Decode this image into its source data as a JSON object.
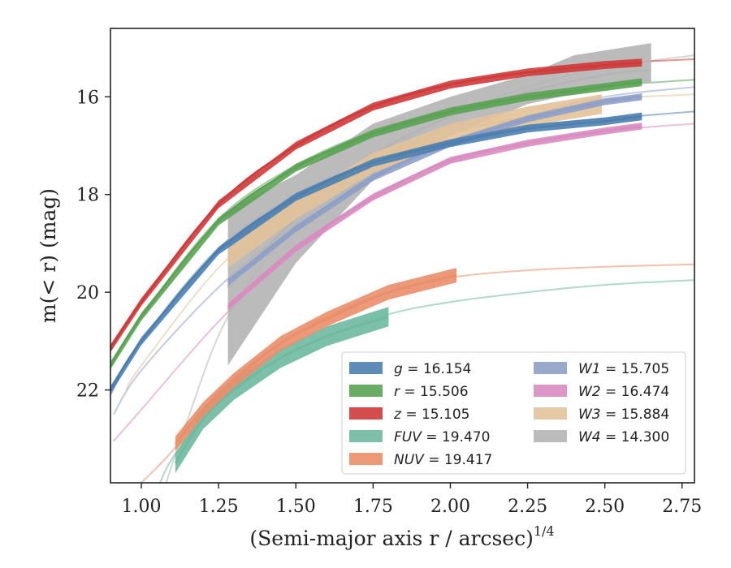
{
  "chart_data": {
    "type": "line",
    "xlabel": "(Semi-major axis r / arcsec)",
    "xlabel_sup": "1/4",
    "ylabel": "m(< r) (mag)",
    "xlim": [
      0.9,
      2.79
    ],
    "ylim": [
      23.9,
      14.6
    ],
    "y_inverted": true,
    "xticks": [
      1.0,
      1.25,
      1.5,
      1.75,
      2.0,
      2.25,
      2.5,
      2.75
    ],
    "xtick_labels": [
      "1.00",
      "1.25",
      "1.50",
      "1.75",
      "2.00",
      "2.25",
      "2.50",
      "2.75"
    ],
    "yticks": [
      16,
      18,
      20,
      22
    ],
    "ytick_labels": [
      "16",
      "18",
      "20",
      "22"
    ],
    "grid": false,
    "legend_position": "lower-right",
    "series": [
      {
        "name": "g = 16.154",
        "legend_var": "g",
        "legend_val": "16.154",
        "color": "#4c7fb0",
        "model": [
          [
            0.9,
            22.1
          ],
          [
            1.0,
            21.0
          ],
          [
            1.25,
            19.1
          ],
          [
            1.5,
            18.0
          ],
          [
            1.75,
            17.3
          ],
          [
            2.0,
            16.9
          ],
          [
            2.25,
            16.6
          ],
          [
            2.5,
            16.45
          ],
          [
            2.79,
            16.3
          ]
        ],
        "data": [
          [
            0.9,
            22.0
          ],
          [
            1.0,
            21.0
          ],
          [
            1.25,
            19.15
          ],
          [
            1.5,
            18.05
          ],
          [
            1.75,
            17.35
          ],
          [
            2.0,
            16.95
          ],
          [
            2.25,
            16.65
          ],
          [
            2.5,
            16.5
          ],
          [
            2.62,
            16.4
          ]
        ],
        "band": 0.08
      },
      {
        "name": "r = 15.506",
        "legend_var": "r",
        "legend_val": "15.506",
        "color": "#5aa353",
        "model": [
          [
            0.9,
            21.5
          ],
          [
            1.0,
            20.5
          ],
          [
            1.25,
            18.5
          ],
          [
            1.5,
            17.4
          ],
          [
            1.75,
            16.7
          ],
          [
            2.0,
            16.25
          ],
          [
            2.25,
            15.95
          ],
          [
            2.5,
            15.78
          ],
          [
            2.79,
            15.65
          ]
        ],
        "data": [
          [
            0.9,
            21.5
          ],
          [
            1.0,
            20.5
          ],
          [
            1.25,
            18.55
          ],
          [
            1.5,
            17.45
          ],
          [
            1.75,
            16.75
          ],
          [
            2.0,
            16.3
          ],
          [
            2.25,
            16.0
          ],
          [
            2.5,
            15.8
          ],
          [
            2.62,
            15.7
          ]
        ],
        "band": 0.08
      },
      {
        "name": "z = 15.105",
        "legend_var": "z",
        "legend_val": "15.105",
        "color": "#cf3a3a",
        "model": [
          [
            0.9,
            21.15
          ],
          [
            1.0,
            20.2
          ],
          [
            1.25,
            18.2
          ],
          [
            1.5,
            17.0
          ],
          [
            1.75,
            16.2
          ],
          [
            2.0,
            15.75
          ],
          [
            2.25,
            15.5
          ],
          [
            2.5,
            15.33
          ],
          [
            2.79,
            15.23
          ]
        ],
        "data": [
          [
            0.9,
            21.15
          ],
          [
            1.0,
            20.2
          ],
          [
            1.25,
            18.2
          ],
          [
            1.5,
            17.0
          ],
          [
            1.75,
            16.2
          ],
          [
            2.0,
            15.75
          ],
          [
            2.25,
            15.5
          ],
          [
            2.5,
            15.35
          ],
          [
            2.62,
            15.3
          ]
        ],
        "band": 0.08
      },
      {
        "name": "FUV = 19.470",
        "legend_var": "FUV",
        "legend_val": "19.470",
        "color": "#6fb9a0",
        "model": [
          [
            1.06,
            23.9
          ],
          [
            1.1,
            23.4
          ],
          [
            1.2,
            22.6
          ],
          [
            1.3,
            21.95
          ],
          [
            1.45,
            21.35
          ],
          [
            1.6,
            20.9
          ],
          [
            1.8,
            20.45
          ],
          [
            2.0,
            20.2
          ],
          [
            2.25,
            20.0
          ],
          [
            2.5,
            19.85
          ],
          [
            2.79,
            19.75
          ]
        ],
        "data": [
          [
            1.11,
            23.5
          ],
          [
            1.2,
            22.6
          ],
          [
            1.3,
            22.0
          ],
          [
            1.45,
            21.35
          ],
          [
            1.6,
            20.9
          ],
          [
            1.8,
            20.5
          ]
        ],
        "band": 0.2
      },
      {
        "name": "NUV = 19.417",
        "legend_var": "NUV",
        "legend_val": "19.417",
        "color": "#e98e6a",
        "model": [
          [
            1.0,
            23.9
          ],
          [
            1.1,
            23.25
          ],
          [
            1.2,
            22.4
          ],
          [
            1.3,
            21.75
          ],
          [
            1.45,
            21.05
          ],
          [
            1.6,
            20.5
          ],
          [
            1.8,
            20.0
          ],
          [
            2.0,
            19.7
          ],
          [
            2.25,
            19.55
          ],
          [
            2.5,
            19.48
          ],
          [
            2.79,
            19.43
          ]
        ],
        "data": [
          [
            1.11,
            23.1
          ],
          [
            1.2,
            22.4
          ],
          [
            1.3,
            21.8
          ],
          [
            1.45,
            21.05
          ],
          [
            1.6,
            20.55
          ],
          [
            1.8,
            20.0
          ],
          [
            2.02,
            19.65
          ]
        ],
        "band": 0.15
      },
      {
        "name": "W1 = 15.705",
        "legend_var": "W1",
        "legend_val": "15.705",
        "color": "#8ea0c8",
        "model": [
          [
            0.91,
            22.5
          ],
          [
            1.0,
            21.6
          ],
          [
            1.25,
            19.9
          ],
          [
            1.5,
            18.6
          ],
          [
            1.75,
            17.6
          ],
          [
            2.0,
            16.9
          ],
          [
            2.25,
            16.4
          ],
          [
            2.5,
            16.0
          ],
          [
            2.79,
            15.8
          ]
        ],
        "data": [
          [
            1.28,
            19.8
          ],
          [
            1.5,
            18.7
          ],
          [
            1.75,
            17.65
          ],
          [
            2.0,
            16.95
          ],
          [
            2.25,
            16.45
          ],
          [
            2.5,
            16.1
          ],
          [
            2.62,
            16.0
          ]
        ],
        "band": 0.07
      },
      {
        "name": "W2 = 16.474",
        "legend_var": "W2",
        "legend_val": "16.474",
        "color": "#d98cc0",
        "model": [
          [
            0.91,
            23.05
          ],
          [
            1.0,
            22.4
          ],
          [
            1.25,
            20.6
          ],
          [
            1.5,
            19.1
          ],
          [
            1.75,
            18.1
          ],
          [
            2.0,
            17.35
          ],
          [
            2.25,
            16.95
          ],
          [
            2.5,
            16.7
          ],
          [
            2.79,
            16.55
          ]
        ],
        "data": [
          [
            1.28,
            20.3
          ],
          [
            1.5,
            19.1
          ],
          [
            1.75,
            18.05
          ],
          [
            2.0,
            17.3
          ],
          [
            2.25,
            16.95
          ],
          [
            2.5,
            16.7
          ],
          [
            2.62,
            16.6
          ]
        ],
        "band": 0.07
      },
      {
        "name": "W3 = 15.884",
        "legend_var": "W3",
        "legend_val": "15.884",
        "color": "#e2c29a",
        "model": [
          [
            0.95,
            22.0
          ],
          [
            1.0,
            21.5
          ],
          [
            1.25,
            19.5
          ],
          [
            1.5,
            18.2
          ],
          [
            1.75,
            17.3
          ],
          [
            2.0,
            16.7
          ],
          [
            2.25,
            16.3
          ],
          [
            2.5,
            16.05
          ],
          [
            2.79,
            15.95
          ]
        ],
        "data": [
          [
            1.28,
            19.3
          ],
          [
            1.5,
            18.3
          ],
          [
            1.75,
            17.35
          ],
          [
            2.0,
            16.75
          ],
          [
            2.25,
            16.4
          ],
          [
            2.49,
            16.15
          ]
        ],
        "band": 0.2
      },
      {
        "name": "W4 = 14.300",
        "legend_var": "W4",
        "legend_val": "14.300",
        "color": "#b4b4b4",
        "model": [
          [
            1.08,
            23.9
          ],
          [
            1.15,
            22.6
          ],
          [
            1.28,
            20.5
          ],
          [
            1.5,
            18.6
          ],
          [
            1.75,
            17.3
          ],
          [
            2.0,
            16.4
          ],
          [
            2.25,
            15.8
          ],
          [
            2.5,
            15.4
          ],
          [
            2.79,
            15.15
          ]
        ],
        "data": [
          [
            1.28,
            19.9
          ],
          [
            1.5,
            18.5
          ],
          [
            1.75,
            17.2
          ],
          [
            2.0,
            16.4
          ],
          [
            2.25,
            15.9
          ],
          [
            2.5,
            15.55
          ],
          [
            2.65,
            15.45
          ]
        ],
        "band_lower": [
          [
            1.28,
            21.5
          ],
          [
            1.5,
            19.4
          ],
          [
            1.75,
            17.7
          ],
          [
            2.0,
            16.8
          ],
          [
            2.25,
            16.15
          ],
          [
            2.5,
            15.8
          ],
          [
            2.65,
            15.7
          ]
        ],
        "band_upper": [
          [
            1.28,
            18.3
          ],
          [
            1.5,
            17.6
          ],
          [
            1.75,
            16.55
          ],
          [
            2.0,
            16.0
          ],
          [
            2.25,
            15.55
          ],
          [
            2.4,
            15.15
          ],
          [
            2.65,
            14.9
          ]
        ]
      }
    ]
  }
}
